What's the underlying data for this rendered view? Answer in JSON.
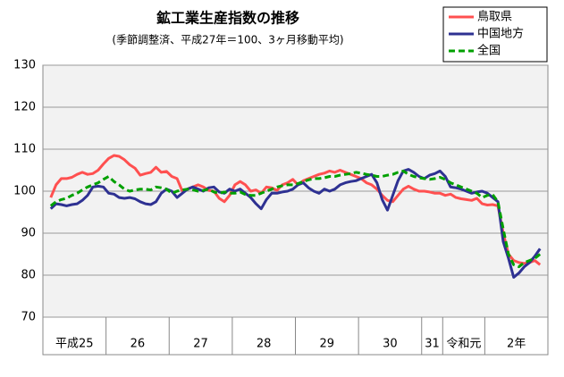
{
  "chart_data": {
    "type": "line",
    "title": "鉱工業生産指数の推移",
    "subtitle": "(季節調整済、平成27年＝100、3ヶ月移動平均)",
    "categories": [
      "平成25",
      null,
      null,
      null,
      null,
      null,
      null,
      null,
      null,
      null,
      null,
      null,
      "26",
      null,
      null,
      null,
      null,
      null,
      null,
      null,
      null,
      null,
      null,
      null,
      "27",
      null,
      null,
      null,
      null,
      null,
      null,
      null,
      null,
      null,
      null,
      null,
      "28",
      null,
      null,
      null,
      null,
      null,
      null,
      null,
      null,
      null,
      null,
      null,
      "29",
      null,
      null,
      null,
      null,
      null,
      null,
      null,
      null,
      null,
      null,
      null,
      "30",
      null,
      null,
      null,
      null,
      null,
      null,
      null,
      null,
      null,
      null,
      null,
      "31",
      null,
      null,
      null,
      "令和元",
      null,
      null,
      null,
      null,
      null,
      null,
      null,
      "2年",
      null,
      null,
      null,
      null,
      null,
      null,
      null,
      null,
      null,
      null,
      null
    ],
    "ylim": [
      70,
      130
    ],
    "yticks": [
      70,
      80,
      90,
      100,
      110,
      120,
      130
    ],
    "grid": true,
    "legend": "top-right",
    "series": [
      {
        "name": "鳥取県",
        "color": "#ff5050",
        "dash": false,
        "values": [
          null,
          98.5,
          101.5,
          103,
          103,
          103.3,
          104,
          104.5,
          104,
          104.2,
          105,
          106.5,
          107.8,
          108.5,
          108.3,
          107.5,
          106.3,
          105.5,
          103.8,
          104.2,
          104.5,
          105.7,
          104.5,
          104.7,
          103.5,
          103,
          100,
          100.5,
          101,
          101.5,
          101,
          100.2,
          100,
          98.3,
          97.5,
          99,
          101.5,
          102.3,
          101.5,
          100,
          100.3,
          99.5,
          101,
          100.8,
          100.2,
          101.5,
          102,
          102.8,
          101.5,
          102.5,
          103,
          103.5,
          104,
          104.3,
          104.8,
          104.5,
          105,
          104.5,
          104,
          103.5,
          103,
          102,
          101.5,
          100.5,
          99,
          97.8,
          97.5,
          99,
          100.5,
          101.2,
          100.5,
          100,
          100,
          99.8,
          99.5,
          99.5,
          99,
          99.3,
          98.5,
          98.2,
          98,
          97.8,
          98.3,
          97,
          96.7,
          96.8,
          96.5,
          90,
          85,
          83.5,
          83,
          82.8,
          83,
          83.5,
          82.5,
          null
        ]
      },
      {
        "name": "中国地方",
        "color": "#2e3192",
        "dash": false,
        "values": [
          null,
          95.8,
          97,
          96.8,
          96.5,
          96.8,
          97,
          97.8,
          99,
          101,
          101.2,
          101,
          99.5,
          99.3,
          98.5,
          98.3,
          98.5,
          98.2,
          97.5,
          97,
          96.8,
          97.5,
          99.5,
          100.5,
          100,
          98.5,
          99.5,
          100.5,
          101,
          100.5,
          100,
          100.8,
          101,
          99.8,
          99.5,
          100.5,
          100,
          100.5,
          99.5,
          98.5,
          97,
          95.8,
          98,
          99.5,
          99.5,
          99.8,
          100,
          100.5,
          101.5,
          102,
          100.8,
          100,
          99.5,
          100.5,
          100,
          100.5,
          101.5,
          102,
          102.3,
          102.5,
          103,
          103.5,
          104,
          102,
          98,
          95.5,
          99,
          102.5,
          104.8,
          105.2,
          104.5,
          103.5,
          103,
          103.8,
          104.2,
          104.8,
          103.5,
          101,
          100.8,
          100.5,
          100,
          99.5,
          99.8,
          100,
          99.5,
          98.5,
          97.5,
          88,
          84,
          79.5,
          80.5,
          82,
          83,
          84.5,
          86.3,
          null
        ]
      },
      {
        "name": "全国",
        "color": "#00a000",
        "dash": true,
        "values": [
          null,
          96.5,
          97.5,
          98,
          98.3,
          99,
          99.5,
          100.3,
          101,
          101.5,
          102,
          102.8,
          103.5,
          102.3,
          101.5,
          100.5,
          100,
          100.3,
          100.5,
          100.5,
          100.3,
          101,
          100.8,
          100.5,
          99.5,
          100,
          100.3,
          100.5,
          100.3,
          100,
          100.2,
          100.5,
          99.8,
          99.5,
          99.8,
          99.5,
          99.5,
          99.8,
          99.2,
          99,
          99,
          99.5,
          100,
          100.5,
          101,
          101.3,
          101.5,
          101.5,
          101.8,
          102.3,
          102.7,
          103,
          103,
          103.2,
          103.5,
          103.5,
          103.8,
          104,
          104.2,
          104.5,
          104.3,
          104,
          103.8,
          103.5,
          103.5,
          103.8,
          104,
          104.5,
          104.8,
          104,
          103.5,
          103.2,
          103,
          102.8,
          103,
          103.3,
          102.8,
          102,
          101.5,
          101,
          100.5,
          100,
          99.5,
          98.5,
          99,
          99.2,
          97.5,
          91,
          85,
          82.5,
          82,
          83,
          83.5,
          84,
          85,
          null
        ]
      }
    ]
  }
}
